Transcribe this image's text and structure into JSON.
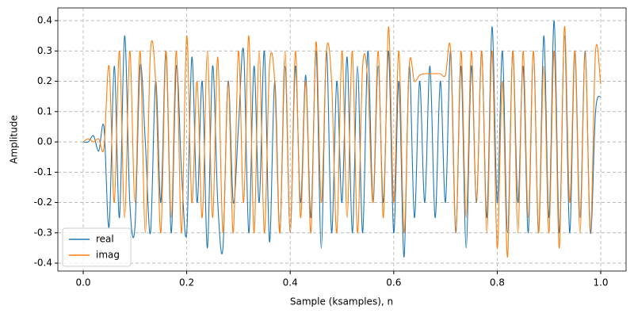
{
  "chart_data": {
    "type": "line",
    "xlabel": "Sample (ksamples), n",
    "ylabel": "Amplitude",
    "x": [
      0,
      0.01,
      0.02,
      0.03,
      0.04,
      0.05,
      0.06,
      0.07,
      0.08,
      0.09,
      0.1,
      0.11,
      0.12,
      0.13,
      0.14,
      0.15,
      0.16,
      0.17,
      0.18,
      0.19,
      0.2,
      0.21,
      0.22,
      0.23,
      0.24,
      0.25,
      0.26,
      0.27,
      0.28,
      0.29,
      0.3,
      0.31,
      0.32,
      0.33,
      0.34,
      0.35,
      0.36,
      0.37,
      0.38,
      0.39,
      0.4,
      0.41,
      0.42,
      0.43,
      0.44,
      0.45,
      0.46,
      0.47,
      0.48,
      0.49,
      0.5,
      0.51,
      0.52,
      0.53,
      0.54,
      0.55,
      0.56,
      0.57,
      0.58,
      0.59,
      0.6,
      0.61,
      0.62,
      0.63,
      0.64,
      0.65,
      0.66,
      0.67,
      0.68,
      0.69,
      0.7,
      0.71,
      0.72,
      0.73,
      0.74,
      0.75,
      0.76,
      0.77,
      0.78,
      0.79,
      0.8,
      0.81,
      0.82,
      0.83,
      0.84,
      0.85,
      0.86,
      0.87,
      0.88,
      0.89,
      0.9,
      0.91,
      0.92,
      0.93,
      0.94,
      0.95,
      0.96,
      0.97,
      0.98,
      0.99,
      1
    ],
    "series": [
      {
        "name": "real",
        "color": "#1f77b4",
        "values": [
          0,
          0,
          0.02,
          -0.03,
          0.05,
          -0.28,
          0.25,
          -0.25,
          0.35,
          -0.2,
          -0.28,
          0.25,
          0,
          -0.3,
          0.2,
          -0.2,
          0.3,
          -0.3,
          0.25,
          -0.1,
          -0.3,
          0.28,
          -0.2,
          0.2,
          -0.35,
          0.25,
          -0.2,
          -0.35,
          0.2,
          -0.2,
          0.05,
          0.3,
          -0.3,
          0.25,
          -0.2,
          0.3,
          -0.33,
          0.2,
          -0.3,
          0.25,
          -0.3,
          0.25,
          -0.2,
          0.22,
          -0.25,
          0.3,
          -0.35,
          0.3,
          -0.3,
          0.2,
          -0.2,
          0.28,
          -0.3,
          0.25,
          -0.3,
          0.3,
          -0.2,
          0.25,
          -0.2,
          0.3,
          -0.3,
          0.2,
          -0.38,
          0.25,
          -0.25,
          0.2,
          -0.2,
          0.25,
          -0.25,
          0.2,
          -0.2,
          0.3,
          -0.3,
          0.25,
          -0.35,
          0.25,
          -0.2,
          0.3,
          -0.25,
          0.38,
          -0.2,
          0.3,
          -0.3,
          0.3,
          -0.2,
          0.25,
          -0.3,
          0.3,
          -0.3,
          0.35,
          -0.25,
          0.4,
          -0.3,
          0.35,
          -0.3,
          0.3,
          -0.25,
          0.3,
          -0.3,
          0.1,
          0.15
        ]
      },
      {
        "name": "imag",
        "color": "#ff7f0e",
        "values": [
          0,
          0.01,
          0,
          0.01,
          -0.02,
          0.25,
          -0.2,
          0.3,
          -0.25,
          0.3,
          -0.2,
          0.3,
          -0.3,
          0.3,
          0.2,
          -0.3,
          0.3,
          -0.25,
          0.3,
          -0.3,
          0.35,
          -0.2,
          0.2,
          -0.25,
          0.3,
          -0.25,
          0.28,
          -0.3,
          0.2,
          -0.3,
          0.3,
          -0.2,
          0.35,
          -0.3,
          0.3,
          -0.3,
          0.25,
          0.2,
          -0.3,
          0.3,
          -0.3,
          0.3,
          -0.25,
          0.2,
          -0.3,
          0.33,
          -0.2,
          0.3,
          0.2,
          -0.3,
          0.3,
          -0.25,
          0.3,
          -0.3,
          0.25,
          0.2,
          -0.2,
          0.3,
          -0.25,
          0.38,
          -0.2,
          0.3,
          -0.3,
          0.25,
          0.2,
          0.22,
          0.225,
          0.225,
          0.225,
          0.225,
          0.22,
          0.3,
          -0.3,
          0.3,
          -0.25,
          0.3,
          -0.2,
          0.3,
          -0.3,
          0.3,
          -0.35,
          0.2,
          -0.38,
          0.3,
          -0.3,
          0.3,
          -0.25,
          0.3,
          -0.3,
          0.25,
          -0.3,
          0.3,
          -0.35,
          0.38,
          -0.2,
          0.3,
          -0.3,
          0.3,
          -0.3,
          0.3,
          0.19
        ]
      }
    ],
    "xlim": [
      -0.049,
      1.049
    ],
    "ylim": [
      -0.426,
      0.442
    ],
    "xticks": [
      {
        "value": 0,
        "label": "0.0"
      },
      0.2,
      0.4,
      0.6,
      0.8,
      {
        "value": 1,
        "label": "1.0"
      }
    ],
    "yticks": [
      -0.4,
      -0.3,
      -0.2,
      -0.1,
      {
        "value": 0,
        "label": "0.0"
      },
      0.1,
      0.2,
      0.3,
      0.4
    ],
    "grid": true,
    "legend": "lower left"
  }
}
